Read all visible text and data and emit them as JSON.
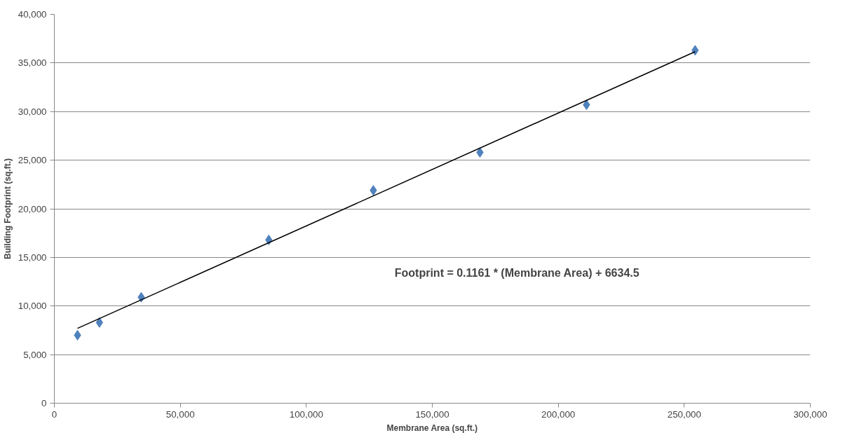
{
  "chart_data": {
    "type": "scatter",
    "xlabel": "Membrane Area (sq.ft.)",
    "ylabel": "Building Footprint (sq.ft.)",
    "series": [
      {
        "color": "#4f81bd",
        "marker": "diamond",
        "x": [
          9200,
          17900,
          34500,
          85100,
          126600,
          168900,
          211200,
          254300
        ],
        "values": [
          7000,
          8300,
          10900,
          16800,
          21900,
          25800,
          30700,
          36300
        ]
      },
      {
        "type": "line",
        "color": "#000000",
        "marker": "none",
        "line_style": "solid",
        "x": [
          9200,
          254300
        ],
        "values": [
          7700,
          36160
        ]
      }
    ],
    "annotations": [
      "Footprint = 0.1161 * (Membrane Area) + 6634.5"
    ],
    "xlim": [
      0,
      300000
    ],
    "ylim": [
      0,
      40000
    ],
    "xticks": [
      {
        "value": 0,
        "label": "0"
      },
      {
        "value": 50000,
        "label": "50,000"
      },
      {
        "value": 100000,
        "label": "100,000"
      },
      {
        "value": 150000,
        "label": "150,000"
      },
      {
        "value": 200000,
        "label": "200,000"
      },
      {
        "value": 250000,
        "label": "250,000"
      },
      {
        "value": 300000,
        "label": "300,000"
      }
    ],
    "yticks": [
      {
        "value": 0,
        "label": "0"
      },
      {
        "value": 5000,
        "label": "5,000"
      },
      {
        "value": 10000,
        "label": "10,000"
      },
      {
        "value": 15000,
        "label": "15,000"
      },
      {
        "value": 20000,
        "label": "20,000"
      },
      {
        "value": 25000,
        "label": "25,000"
      },
      {
        "value": 30000,
        "label": "30,000"
      },
      {
        "value": 35000,
        "label": "35,000"
      },
      {
        "value": 40000,
        "label": "40,000"
      }
    ],
    "grid": "y"
  }
}
